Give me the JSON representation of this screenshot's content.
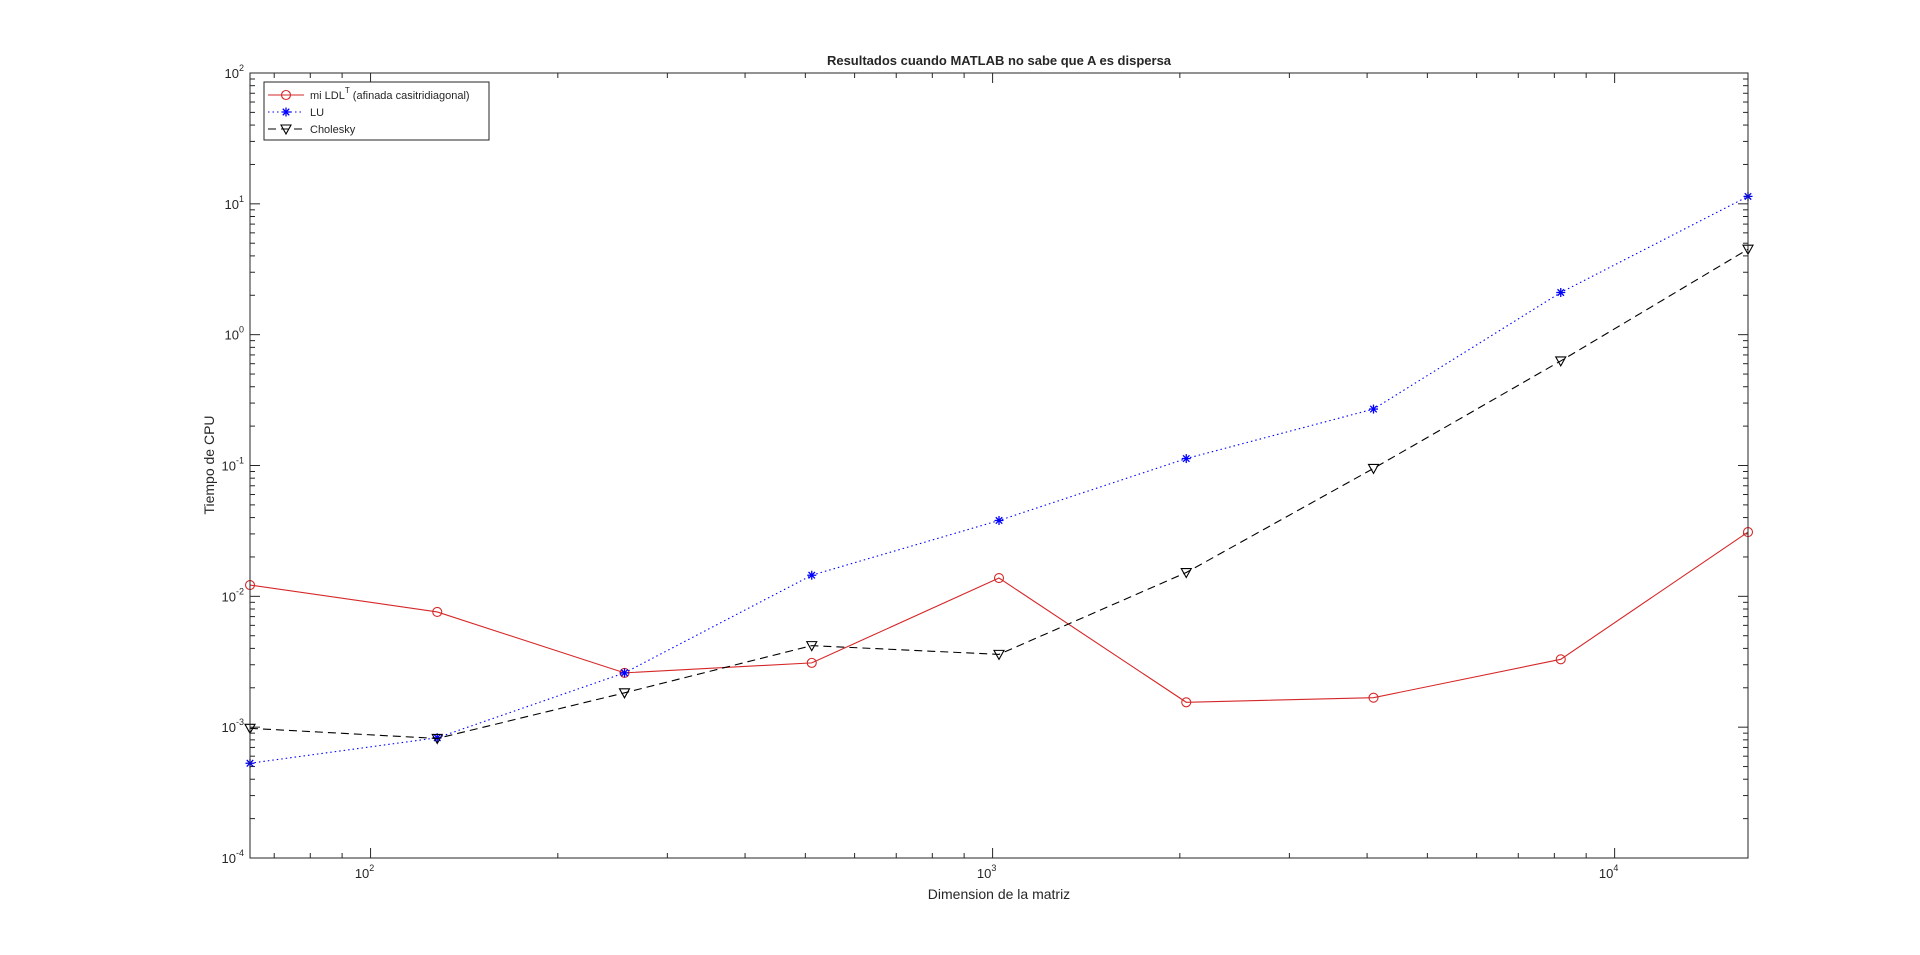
{
  "chart_data": {
    "type": "line",
    "title": "Resultados cuando  MATLAB no sabe que A es dispersa",
    "xlabel": "Dimension de la matriz",
    "ylabel": "Tiempo de CPU",
    "xscale": "log",
    "yscale": "log",
    "xlim": [
      64,
      16384
    ],
    "ylim": [
      0.0001,
      100
    ],
    "grid": false,
    "legend_position": "top-left",
    "x_ticks": [
      {
        "value": 100,
        "base": "10",
        "exp": "2"
      },
      {
        "value": 1000,
        "base": "10",
        "exp": "3"
      },
      {
        "value": 10000,
        "base": "10",
        "exp": "4"
      }
    ],
    "y_ticks": [
      {
        "value": 0.0001,
        "base": "10",
        "exp": "-4"
      },
      {
        "value": 0.001,
        "base": "10",
        "exp": "-3"
      },
      {
        "value": 0.01,
        "base": "10",
        "exp": "-2"
      },
      {
        "value": 0.1,
        "base": "10",
        "exp": "-1"
      },
      {
        "value": 1,
        "base": "10",
        "exp": "0"
      },
      {
        "value": 10,
        "base": "10",
        "exp": "1"
      },
      {
        "value": 100,
        "base": "10",
        "exp": "2"
      }
    ],
    "x": [
      64,
      128,
      256,
      512,
      1024,
      2048,
      4096,
      8192,
      16384
    ],
    "series": [
      {
        "name_main": "mi LDL",
        "name_sup": "T",
        "name_rest": " (afinada casitridiagonal)",
        "color": "#d62728",
        "dash": "solid",
        "marker": "circle",
        "values": [
          0.0122,
          0.0076,
          0.0026,
          0.0031,
          0.0138,
          0.00155,
          0.00168,
          0.0033,
          0.031
        ]
      },
      {
        "name_main": "LU",
        "name_sup": "",
        "name_rest": "",
        "color": "#0000ff",
        "dash": "dotted",
        "marker": "asterisk",
        "values": [
          0.00053,
          0.00083,
          0.0026,
          0.0145,
          0.038,
          0.113,
          0.27,
          2.1,
          11.4
        ]
      },
      {
        "name_main": "Cholesky",
        "name_sup": "",
        "name_rest": "",
        "color": "#000000",
        "dash": "dashed",
        "marker": "triangle-down",
        "values": [
          0.00098,
          0.00082,
          0.00183,
          0.0042,
          0.0036,
          0.0152,
          0.095,
          0.63,
          4.5
        ]
      }
    ]
  }
}
